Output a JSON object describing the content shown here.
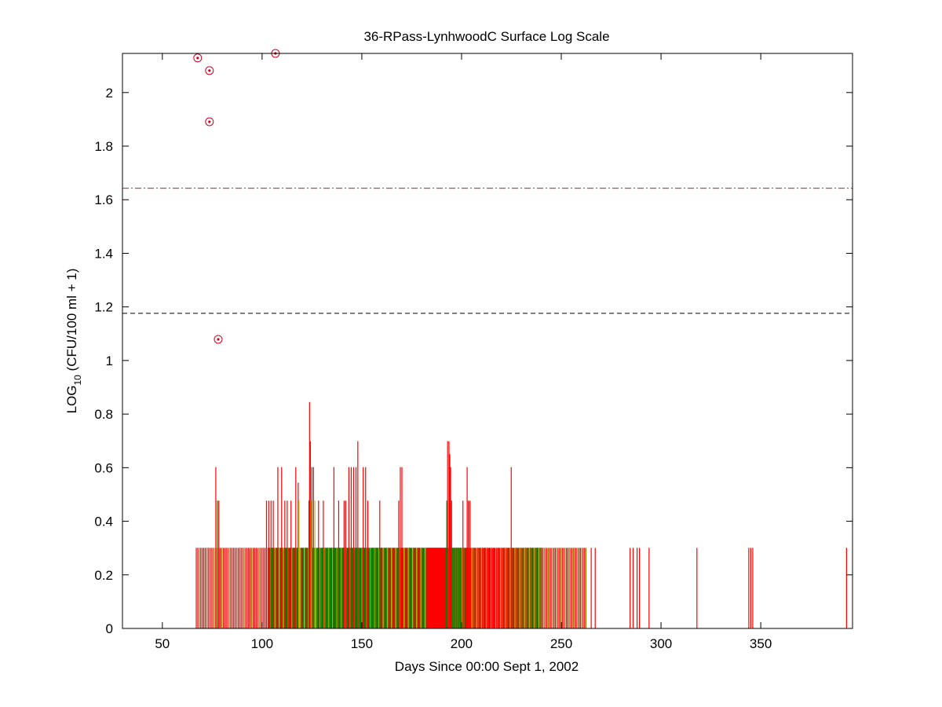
{
  "chart_data": {
    "type": "bar",
    "title": "36-RPass-LynhwoodC Surface Log Scale",
    "xlabel": "Days Since 00:00 Sept 1, 2002",
    "ylabel": {
      "main": "LOG",
      "sub": "10",
      "rest": " (CFU/100 ml + 1)"
    },
    "xlim": [
      30,
      396
    ],
    "ylim": [
      0,
      2.146
    ],
    "xticks": [
      50,
      100,
      150,
      200,
      250,
      300,
      350
    ],
    "xtick_labels": [
      "50",
      "100",
      "150",
      "200",
      "250",
      "300",
      "350"
    ],
    "yticks": [
      0,
      0.2,
      0.4,
      0.6,
      0.8,
      1,
      1.2,
      1.4,
      1.6,
      1.8,
      2
    ],
    "ytick_labels": [
      "0",
      "0.2",
      "0.4",
      "0.6",
      "0.8",
      "1",
      "1.2",
      "1.4",
      "1.6",
      "1.8",
      "2"
    ],
    "grid": false,
    "colors": {
      "red": "#ff0000",
      "green": "#008000",
      "yellow": "#c8c800",
      "olive": "#808000",
      "blue": "#0000c0",
      "black": "#000000"
    },
    "reference_lines": [
      {
        "name": "red-dashdot-threshold",
        "y": 1.643,
        "color": "#ff0000",
        "style": "dashdot"
      },
      {
        "name": "black-dashed-threshold",
        "y": 1.176,
        "color": "#000000",
        "style": "dashed"
      }
    ],
    "circle_points": [
      [
        67.7,
        2.129
      ],
      [
        73.6,
        2.082
      ],
      [
        73.6,
        1.891
      ],
      [
        106.7,
        2.146
      ],
      [
        78.0,
        1.079
      ]
    ],
    "base_runs": [
      {
        "from": 67,
        "to": 104,
        "step": 0.75,
        "value": 0.301,
        "pattern": [
          "red",
          "red",
          "olive",
          "red",
          "red"
        ]
      },
      {
        "from": 104,
        "to": 124,
        "step": 0.35,
        "value": 0.301,
        "pattern": [
          "green",
          "yellow",
          "olive",
          "green",
          "red",
          "green"
        ]
      },
      {
        "from": 124,
        "to": 160,
        "step": 0.3,
        "value": 0.301,
        "pattern": [
          "green",
          "green",
          "green",
          "yellow",
          "green",
          "olive",
          "green"
        ]
      },
      {
        "from": 160,
        "to": 183,
        "step": 0.35,
        "value": 0.301,
        "pattern": [
          "red",
          "green",
          "yellow",
          "olive",
          "red",
          "green"
        ]
      },
      {
        "from": 183,
        "to": 192,
        "step": 0.25,
        "value": 0.301,
        "pattern": [
          "red"
        ]
      },
      {
        "from": 192,
        "to": 200,
        "step": 0.3,
        "value": 0.301,
        "pattern": [
          "green",
          "green",
          "olive"
        ]
      },
      {
        "from": 200,
        "to": 240,
        "step": 0.4,
        "value": 0.301,
        "pattern": [
          "red",
          "yellow",
          "red",
          "olive",
          "red",
          "green"
        ]
      },
      {
        "from": 240,
        "to": 263,
        "step": 0.7,
        "value": 0.301,
        "pattern": [
          "red",
          "red",
          "olive"
        ]
      }
    ],
    "stems": [
      [
        265,
        0.301,
        "red"
      ],
      [
        267,
        0.301,
        "red"
      ],
      [
        284.5,
        0.301,
        "red"
      ],
      [
        286,
        0.301,
        "red"
      ],
      [
        288,
        0.301,
        "red"
      ],
      [
        289.2,
        0.301,
        "red"
      ],
      [
        294,
        0.301,
        "red"
      ],
      [
        318,
        0.301,
        "red"
      ],
      [
        344,
        0.301,
        "red"
      ],
      [
        345,
        0.301,
        "red"
      ],
      [
        346,
        0.301,
        "red"
      ],
      [
        393,
        0.301,
        "red"
      ],
      [
        76.8,
        0.602,
        "red"
      ],
      [
        77.6,
        0.477,
        "green"
      ],
      [
        78.3,
        0.477,
        "red"
      ],
      [
        102.2,
        0.477,
        "red"
      ],
      [
        103.3,
        0.477,
        "red"
      ],
      [
        104.5,
        0.477,
        "red"
      ],
      [
        105.6,
        0.477,
        "red"
      ],
      [
        107.9,
        0.602,
        "red"
      ],
      [
        109.8,
        0.602,
        "red"
      ],
      [
        111.4,
        0.477,
        "red"
      ],
      [
        112.6,
        0.477,
        "red"
      ],
      [
        114.5,
        0.477,
        "red"
      ],
      [
        116.9,
        0.602,
        "red"
      ],
      [
        118.1,
        0.544,
        "red"
      ],
      [
        118.5,
        0.477,
        "yellow"
      ],
      [
        123.5,
        0.477,
        "red"
      ],
      [
        123.8,
        0.845,
        "red"
      ],
      [
        124.2,
        0.699,
        "red"
      ],
      [
        124.6,
        0.477,
        "yellow"
      ],
      [
        125.0,
        0.602,
        "red"
      ],
      [
        125.8,
        0.602,
        "red"
      ],
      [
        126.5,
        0.477,
        "yellow"
      ],
      [
        128.3,
        0.477,
        "red"
      ],
      [
        130.7,
        0.477,
        "red"
      ],
      [
        136.0,
        0.602,
        "red"
      ],
      [
        138.4,
        0.477,
        "red"
      ],
      [
        141.1,
        0.477,
        "red"
      ],
      [
        141.9,
        0.477,
        "red"
      ],
      [
        143.5,
        0.602,
        "red"
      ],
      [
        144.7,
        0.602,
        "red"
      ],
      [
        145.9,
        0.602,
        "red"
      ],
      [
        147.1,
        0.602,
        "red"
      ],
      [
        148.0,
        0.699,
        "red"
      ],
      [
        150.7,
        0.602,
        "red"
      ],
      [
        151.9,
        0.602,
        "red"
      ],
      [
        153.0,
        0.477,
        "red"
      ],
      [
        159.0,
        0.477,
        "red"
      ],
      [
        168.5,
        0.477,
        "red"
      ],
      [
        169.3,
        0.602,
        "red"
      ],
      [
        170.1,
        0.602,
        "red"
      ],
      [
        193.0,
        0.699,
        "red"
      ],
      [
        193.7,
        0.699,
        "red"
      ],
      [
        194.1,
        0.65,
        "red"
      ],
      [
        194.5,
        0.602,
        "red"
      ],
      [
        192.6,
        0.477,
        "green"
      ],
      [
        195.0,
        0.477,
        "red"
      ],
      [
        200.7,
        0.477,
        "red"
      ],
      [
        202.8,
        0.602,
        "red"
      ],
      [
        203.4,
        0.477,
        "red"
      ],
      [
        204.2,
        0.477,
        "red"
      ],
      [
        224.9,
        0.602,
        "red"
      ]
    ]
  }
}
